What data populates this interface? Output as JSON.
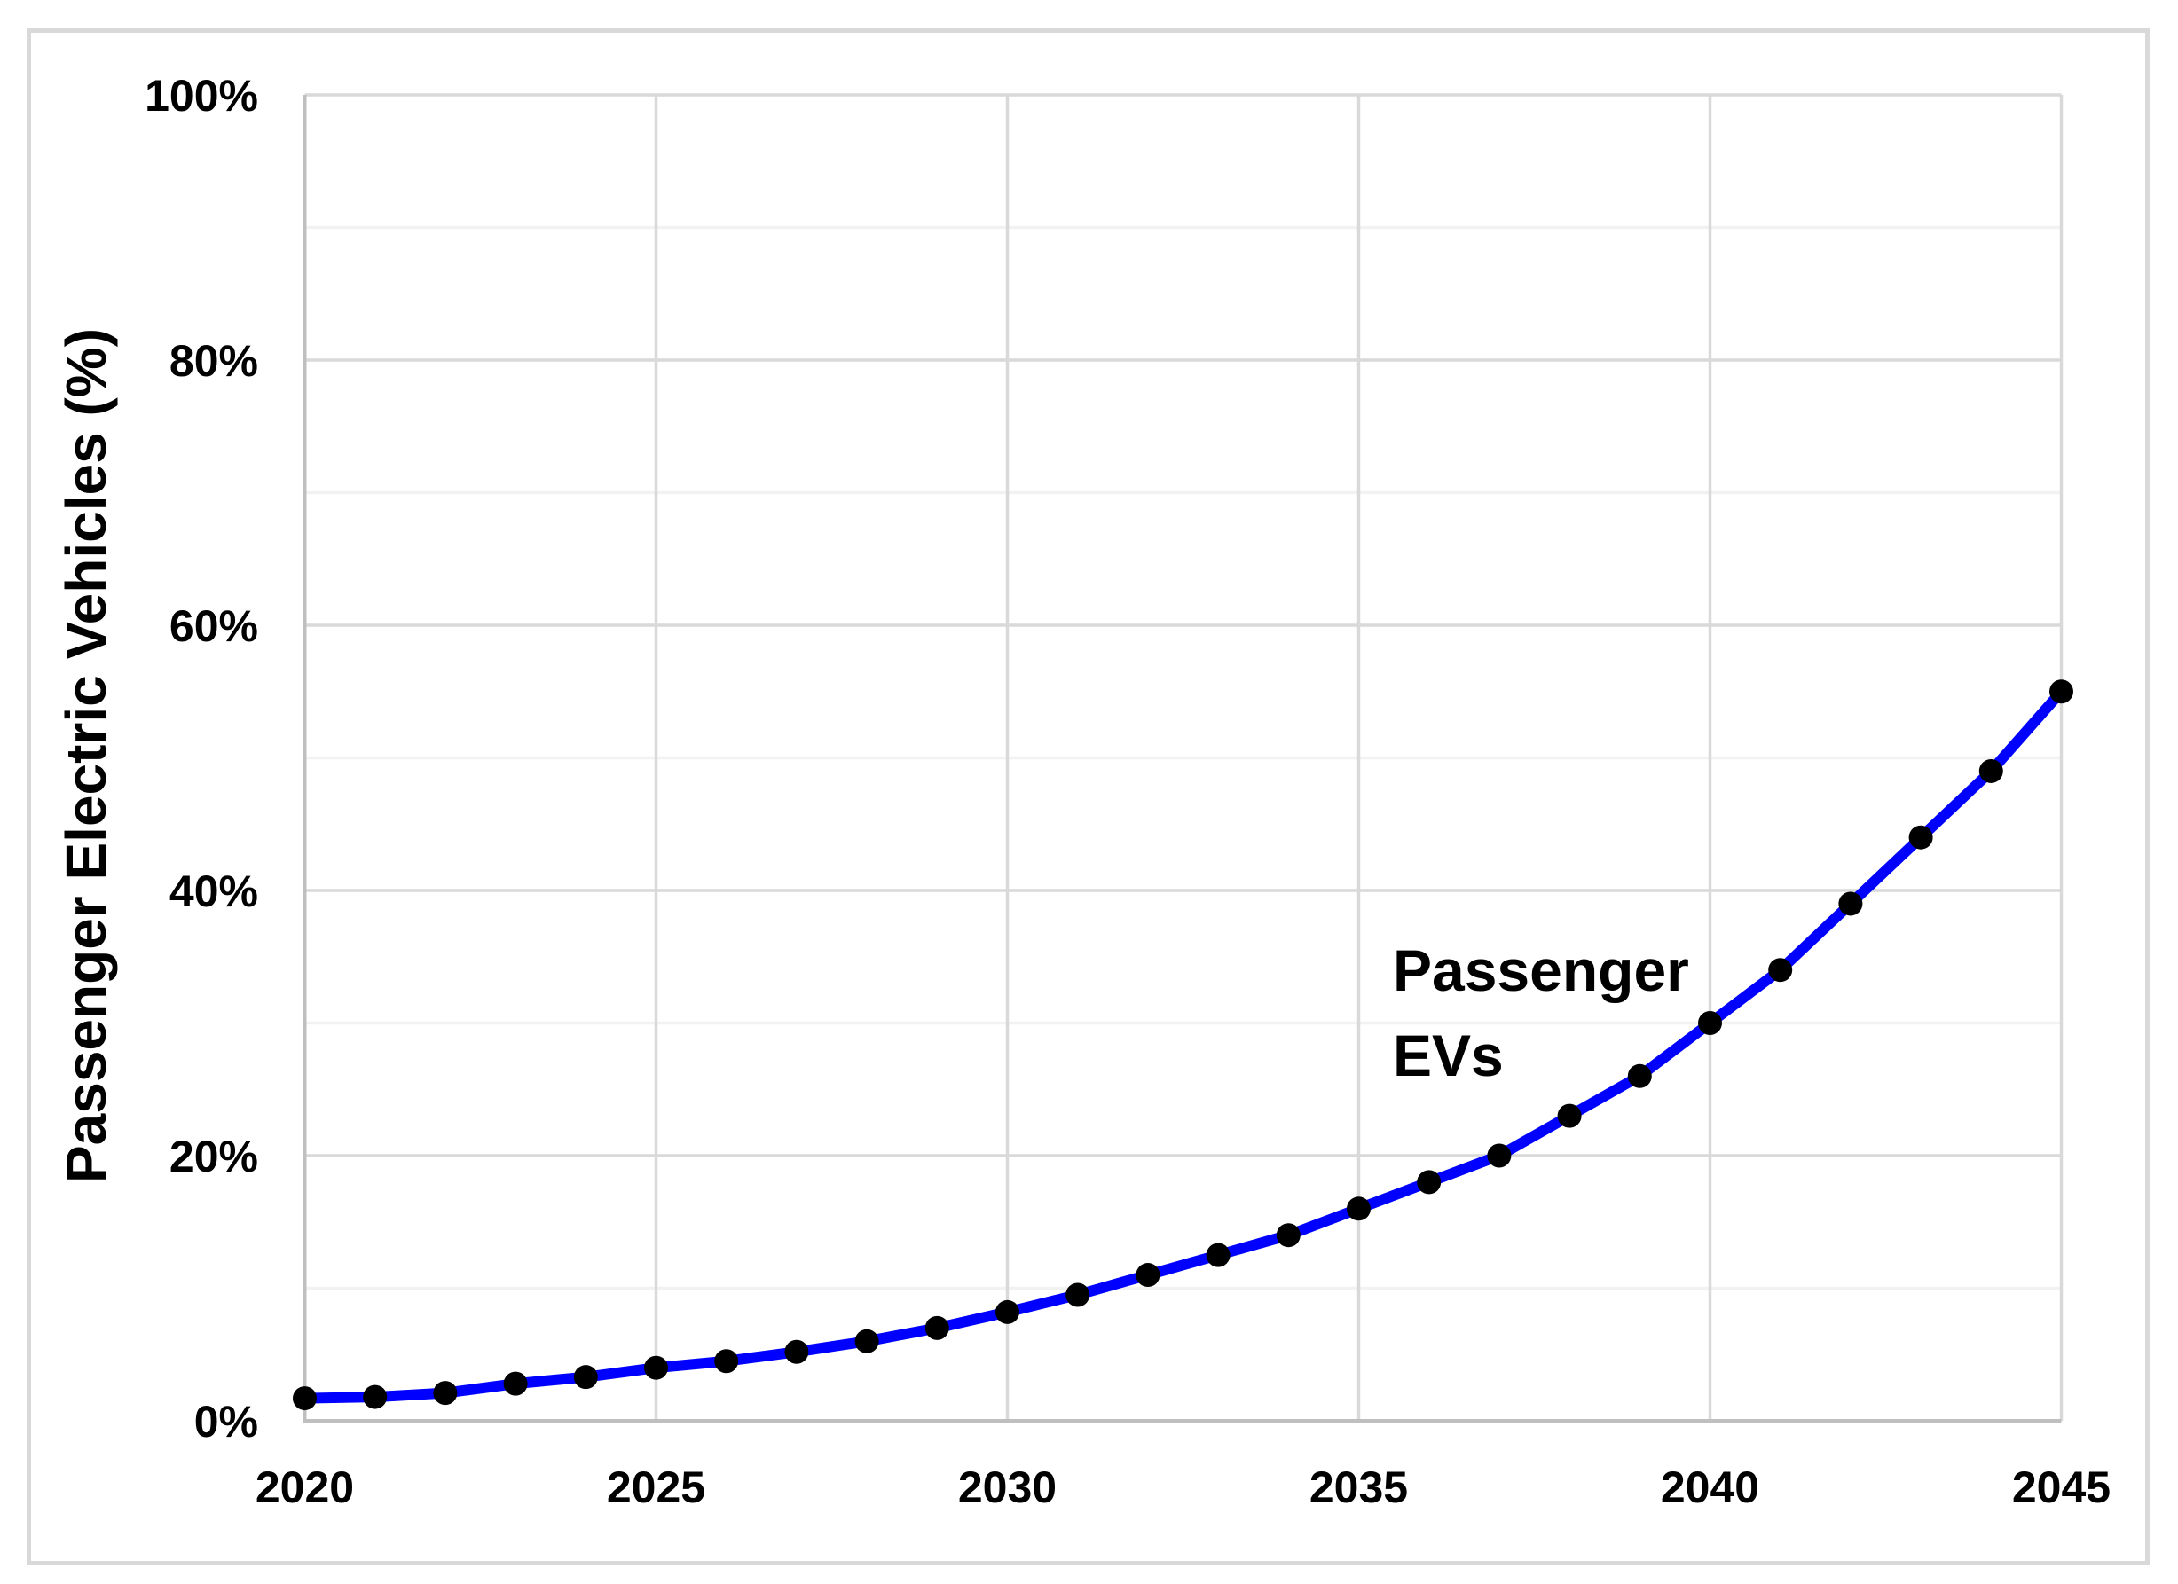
{
  "chart_data": {
    "type": "line",
    "title": "",
    "xlabel": "",
    "ylabel": "Passenger Electric Vehicles (%)",
    "xlim": [
      2020,
      2045
    ],
    "ylim": [
      0,
      100
    ],
    "grid": {
      "major_horizontal_pct": [
        20,
        40,
        60,
        80,
        100
      ],
      "minor_horizontal_pct": [
        10,
        30,
        50,
        70,
        90
      ],
      "vertical_years": [
        2025,
        2030,
        2035,
        2040,
        2045
      ]
    },
    "x_ticks": [
      {
        "label": "2020",
        "value": 2020
      },
      {
        "label": "2025",
        "value": 2025
      },
      {
        "label": "2030",
        "value": 2030
      },
      {
        "label": "2035",
        "value": 2035
      },
      {
        "label": "2040",
        "value": 2040
      },
      {
        "label": "2045",
        "value": 2045
      }
    ],
    "y_ticks": [
      {
        "label": "0%",
        "value": 0
      },
      {
        "label": "20%",
        "value": 20
      },
      {
        "label": "40%",
        "value": 40
      },
      {
        "label": "60%",
        "value": 60
      },
      {
        "label": "80%",
        "value": 80
      },
      {
        "label": "100%",
        "value": 100
      }
    ],
    "series": [
      {
        "name": "Passenger EVs",
        "x": [
          2020,
          2021,
          2022,
          2023,
          2024,
          2025,
          2026,
          2027,
          2028,
          2029,
          2030,
          2031,
          2032,
          2033,
          2034,
          2035,
          2036,
          2037,
          2038,
          2039,
          2040,
          2041,
          2042,
          2043,
          2044,
          2045
        ],
        "values": [
          1.7,
          1.8,
          2.1,
          2.8,
          3.3,
          4.0,
          4.5,
          5.2,
          6.0,
          7.0,
          8.2,
          9.5,
          11.0,
          12.5,
          14.0,
          16.0,
          18.0,
          20.0,
          23.0,
          26.0,
          30.0,
          34.0,
          39.0,
          44.0,
          49.0,
          55.0
        ]
      }
    ],
    "annotation": {
      "lines": [
        "Passenger",
        "EVs"
      ]
    },
    "legend_position": "none"
  },
  "colors": {
    "line": "#0000ff",
    "marker": "#000000",
    "grid_major": "#d9d9d9",
    "grid_minor": "#f2f2f2",
    "axis": "#bfbfbf",
    "border": "#d9d9d9",
    "text": "#000000"
  }
}
